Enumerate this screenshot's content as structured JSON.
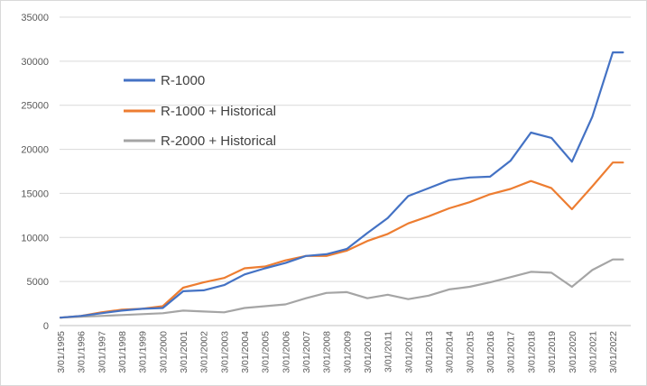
{
  "chart_data": {
    "type": "line",
    "title": "",
    "xlabel": "",
    "ylabel": "",
    "ylim": [
      0,
      35000
    ],
    "y_ticks": [
      0,
      5000,
      10000,
      15000,
      20000,
      25000,
      30000,
      35000
    ],
    "y_tick_labels": [
      "0",
      "5000",
      "10000",
      "15000",
      "20000",
      "25000",
      "30000",
      "35000"
    ],
    "x_tick_labels": [
      "3/01/1995",
      "3/01/1996",
      "3/01/1997",
      "3/01/1998",
      "3/01/1999",
      "3/01/2000",
      "3/01/2001",
      "3/01/2002",
      "3/01/2003",
      "3/01/2004",
      "3/01/2005",
      "3/01/2006",
      "3/01/2007",
      "3/01/2008",
      "3/01/2009",
      "3/01/2010",
      "3/01/2011",
      "3/01/2012",
      "3/01/2013",
      "3/01/2014",
      "3/01/2015",
      "3/01/2016",
      "3/01/2017",
      "3/01/2018",
      "3/01/2019",
      "3/01/2020",
      "3/01/2021",
      "3/01/2022"
    ],
    "x_range": [
      "3/01/1995",
      "3/01/2022"
    ],
    "grid": "horizontal",
    "legend_position": "upper-left, inside",
    "x": [
      "3/01/1995",
      "3/01/1996",
      "3/01/1997",
      "3/01/1998",
      "3/01/1999",
      "3/01/2000",
      "3/01/2001",
      "3/01/2002",
      "3/01/2003",
      "3/01/2004",
      "3/01/2005",
      "3/01/2006",
      "3/01/2007",
      "3/01/2008",
      "3/01/2009",
      "3/01/2010",
      "3/01/2011",
      "3/01/2012",
      "3/01/2013",
      "3/01/2014",
      "3/01/2015",
      "3/01/2016",
      "3/01/2017",
      "3/01/2018",
      "3/01/2019",
      "3/01/2020",
      "3/01/2021",
      "3/01/2022",
      "9/01/2022"
    ],
    "series": [
      {
        "name": "R-1000",
        "color": "#4472C4",
        "values": [
          900,
          1100,
          1400,
          1700,
          1900,
          2000,
          3900,
          4000,
          4600,
          5800,
          6500,
          7100,
          7900,
          8100,
          8700,
          10500,
          12200,
          14700,
          15600,
          16500,
          16800,
          16900,
          18700,
          21900,
          21300,
          18600,
          23700,
          31000,
          31000
        ]
      },
      {
        "name": "R-1000 + Historical",
        "color": "#ED7D31",
        "values": [
          900,
          1100,
          1500,
          1800,
          1900,
          2200,
          4300,
          4900,
          5400,
          6500,
          6700,
          7400,
          7900,
          7900,
          8500,
          9600,
          10400,
          11600,
          12400,
          13300,
          14000,
          14900,
          15500,
          16400,
          15600,
          13200,
          15800,
          18500,
          18500
        ]
      },
      {
        "name": "R-2000 + Historical",
        "color": "#A5A5A5",
        "values": [
          900,
          1000,
          1100,
          1200,
          1300,
          1400,
          1700,
          1600,
          1500,
          2000,
          2200,
          2400,
          3100,
          3700,
          3800,
          3100,
          3500,
          3000,
          3400,
          4100,
          4400,
          4900,
          5500,
          6100,
          6000,
          4400,
          6300,
          7500,
          7500
        ]
      }
    ]
  }
}
